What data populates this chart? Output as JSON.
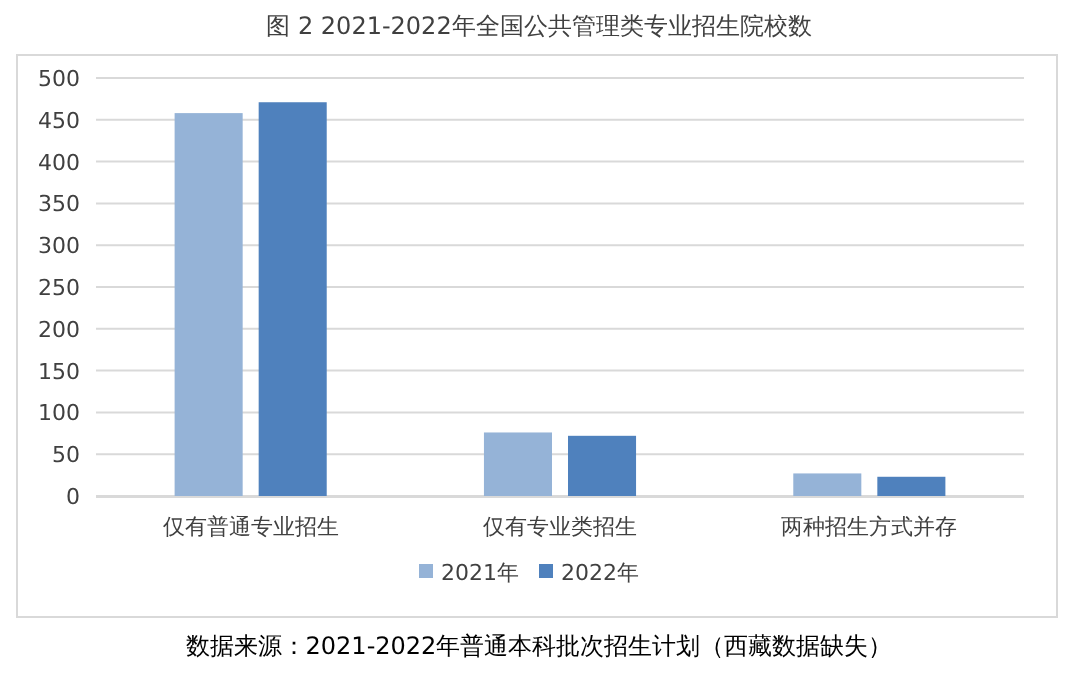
{
  "chart_data": {
    "type": "bar",
    "title": "图 2 2021-2022年全国公共管理类专业招生院校数",
    "categories": [
      "仅有普通专业招生",
      "仅有专业类招生",
      "两种招生方式并存"
    ],
    "series": [
      {
        "name": "2021年",
        "color": "#95b3d7",
        "values": [
          458,
          76,
          27
        ]
      },
      {
        "name": "2022年",
        "color": "#4f81bd",
        "values": [
          471,
          72,
          23
        ]
      }
    ],
    "ylim": [
      0,
      500
    ],
    "yticks": [
      0,
      50,
      100,
      150,
      200,
      250,
      300,
      350,
      400,
      450,
      500
    ],
    "grid": "y",
    "legend": "bottom",
    "annotations": [
      "数据来源：2021-2022年普通本科批次招生计划（西藏数据缺失）"
    ]
  }
}
